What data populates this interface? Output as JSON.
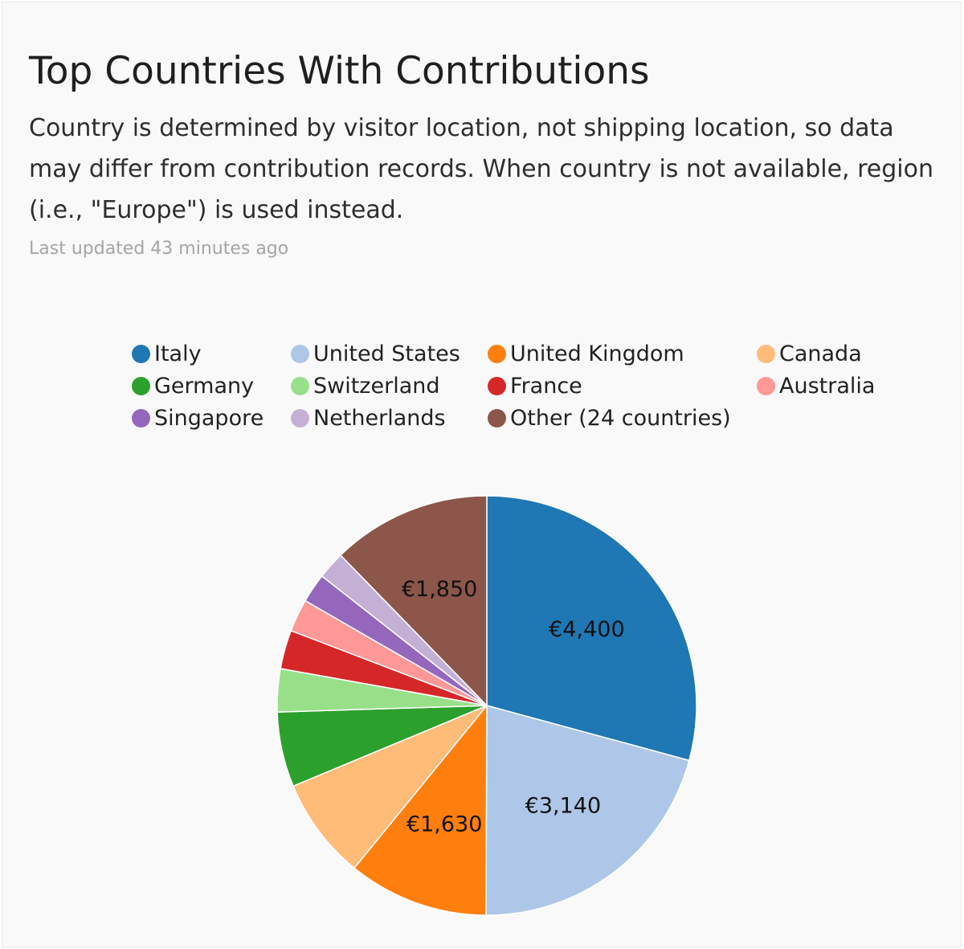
{
  "header": {
    "title": "Top Countries With Contributions",
    "description": "Country is determined by visitor location, not shipping location, so data may differ from contribution records. When country is not available, region (i.e., \"Europe\") is used instead.",
    "last_updated": "Last updated 43 minutes ago"
  },
  "chart_data": {
    "type": "pie",
    "currency_symbol": "€",
    "slices": [
      {
        "label": "Italy",
        "value": 4400,
        "value_label": "€4,400",
        "color": "#1f77b4"
      },
      {
        "label": "United States",
        "value": 3140,
        "value_label": "€3,140",
        "color": "#aec7e8"
      },
      {
        "label": "United Kingdom",
        "value": 1630,
        "value_label": "€1,630",
        "color": "#ff7f0e"
      },
      {
        "label": "Canada",
        "value": 1180,
        "value_label": "",
        "color": "#ffbb78"
      },
      {
        "label": "Germany",
        "value": 870,
        "value_label": "",
        "color": "#2ca02c"
      },
      {
        "label": "Switzerland",
        "value": 500,
        "value_label": "",
        "color": "#98df8a"
      },
      {
        "label": "France",
        "value": 450,
        "value_label": "",
        "color": "#d62728"
      },
      {
        "label": "Australia",
        "value": 380,
        "value_label": "",
        "color": "#ff9896"
      },
      {
        "label": "Singapore",
        "value": 340,
        "value_label": "",
        "color": "#9467bd"
      },
      {
        "label": "Netherlands",
        "value": 320,
        "value_label": "",
        "color": "#c5b0d5"
      },
      {
        "label": "Other (24 countries)",
        "value": 1850,
        "value_label": "€1,850",
        "color": "#8c564b"
      }
    ],
    "legend_position": "top",
    "legend_columns": 4
  }
}
